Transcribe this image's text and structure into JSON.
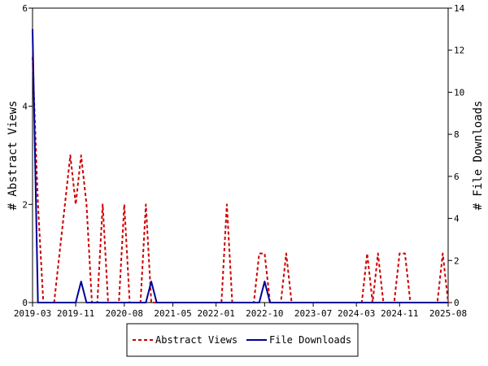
{
  "chart_data": {
    "type": "line",
    "x_axis": {
      "tick_labels": [
        "2019-03",
        "2019-11",
        "2020-08",
        "2021-05",
        "2022-01",
        "2022-10",
        "2023-07",
        "2024-03",
        "2024-11",
        "2025-08"
      ],
      "range": [
        "2019-03",
        "2025-08"
      ]
    },
    "y_left": {
      "label": "# Abstract Views",
      "range": [
        0,
        6
      ],
      "ticks": [
        "0",
        "2",
        "4",
        "6"
      ]
    },
    "y_right": {
      "label": "# File Downloads",
      "range": [
        0,
        14
      ],
      "ticks": [
        "0",
        "2",
        "4",
        "6",
        "8",
        "10",
        "12",
        "14"
      ]
    },
    "grid": false,
    "legend_position": "bottom",
    "series": [
      {
        "name": "Abstract Views",
        "axis": "left",
        "color": "#cc0000",
        "style": "dashed",
        "points": [
          [
            "2019-03",
            5
          ],
          [
            "2019-04",
            2
          ],
          [
            "2019-05",
            0
          ],
          [
            "2019-06",
            0
          ],
          [
            "2019-07",
            0
          ],
          [
            "2019-08",
            1
          ],
          [
            "2019-09",
            2
          ],
          [
            "2019-10",
            3
          ],
          [
            "2019-11",
            2
          ],
          [
            "2019-12",
            3
          ],
          [
            "2020-01",
            2
          ],
          [
            "2020-02",
            0
          ],
          [
            "2020-03",
            0
          ],
          [
            "2020-04",
            2
          ],
          [
            "2020-05",
            0
          ],
          [
            "2020-06",
            0
          ],
          [
            "2020-07",
            0
          ],
          [
            "2020-08",
            2
          ],
          [
            "2020-09",
            0
          ],
          [
            "2020-10",
            0
          ],
          [
            "2020-11",
            0
          ],
          [
            "2020-12",
            2
          ],
          [
            "2021-01",
            0
          ],
          [
            "2022-02",
            0
          ],
          [
            "2022-03",
            2
          ],
          [
            "2022-04",
            0
          ],
          [
            "2022-08",
            0
          ],
          [
            "2022-09",
            1
          ],
          [
            "2022-10",
            1
          ],
          [
            "2022-11",
            0
          ],
          [
            "2023-01",
            0
          ],
          [
            "2023-02",
            1
          ],
          [
            "2023-03",
            0
          ],
          [
            "2024-04",
            0
          ],
          [
            "2024-05",
            1
          ],
          [
            "2024-06",
            0
          ],
          [
            "2024-07",
            1
          ],
          [
            "2024-08",
            0
          ],
          [
            "2024-10",
            0
          ],
          [
            "2024-11",
            1
          ],
          [
            "2024-12",
            1
          ],
          [
            "2025-01",
            0
          ],
          [
            "2025-06",
            0
          ],
          [
            "2025-07",
            1
          ],
          [
            "2025-08",
            0
          ]
        ]
      },
      {
        "name": "File Downloads",
        "axis": "right",
        "color": "#000099",
        "style": "solid",
        "points": [
          [
            "2019-03",
            13
          ],
          [
            "2019-04",
            0
          ],
          [
            "2019-11",
            0
          ],
          [
            "2019-12",
            1
          ],
          [
            "2020-01",
            0
          ],
          [
            "2020-12",
            0
          ],
          [
            "2021-01",
            1
          ],
          [
            "2021-02",
            0
          ],
          [
            "2022-09",
            0
          ],
          [
            "2022-10",
            1
          ],
          [
            "2022-11",
            0
          ],
          [
            "2025-08",
            0
          ]
        ]
      }
    ]
  }
}
